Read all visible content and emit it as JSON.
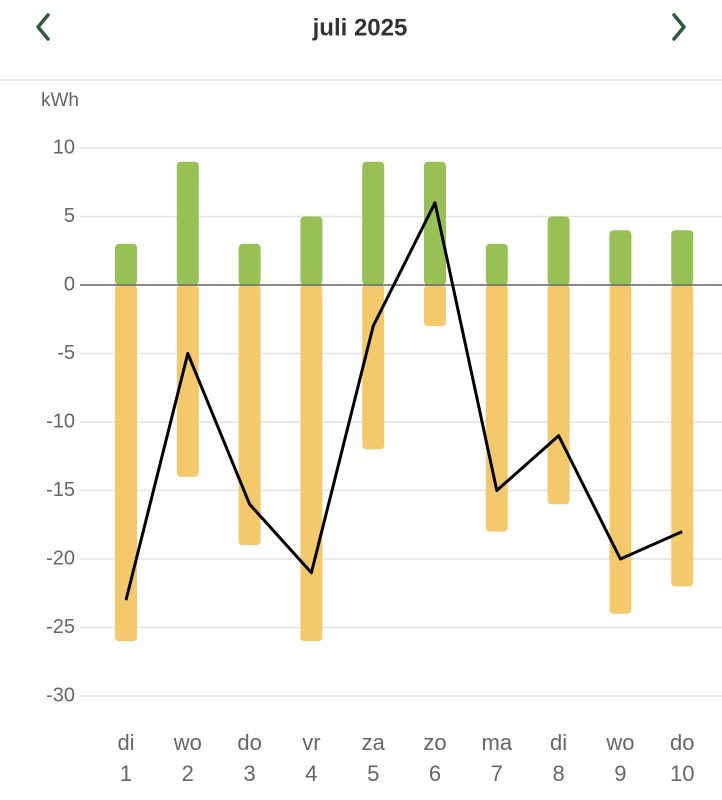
{
  "header": {
    "title": "juli 2025"
  },
  "chart_data": {
    "type": "bar",
    "unit": "kWh",
    "categories": [
      [
        "di",
        "1"
      ],
      [
        "wo",
        "2"
      ],
      [
        "do",
        "3"
      ],
      [
        "vr",
        "4"
      ],
      [
        "za",
        "5"
      ],
      [
        "zo",
        "6"
      ],
      [
        "ma",
        "7"
      ],
      [
        "di",
        "8"
      ],
      [
        "wo",
        "9"
      ],
      [
        "do",
        "10"
      ]
    ],
    "series": [
      {
        "color": "#97c155",
        "values": [
          3,
          9,
          3,
          5,
          9,
          9,
          3,
          5,
          4,
          4
        ]
      },
      {
        "color": "#f3c96b",
        "values": [
          -26,
          -14,
          -19,
          -26,
          -12,
          -3,
          -18,
          -16,
          -24,
          -22
        ]
      }
    ],
    "line": {
      "color": "#000000",
      "values": [
        -23,
        -5,
        -16,
        -21,
        -3,
        6,
        -15,
        -11,
        -20,
        -18
      ]
    },
    "ylim": [
      -30,
      10
    ],
    "yticks": [
      10,
      5,
      0,
      -5,
      -10,
      -15,
      -20,
      -25,
      -30
    ],
    "grid": true
  }
}
